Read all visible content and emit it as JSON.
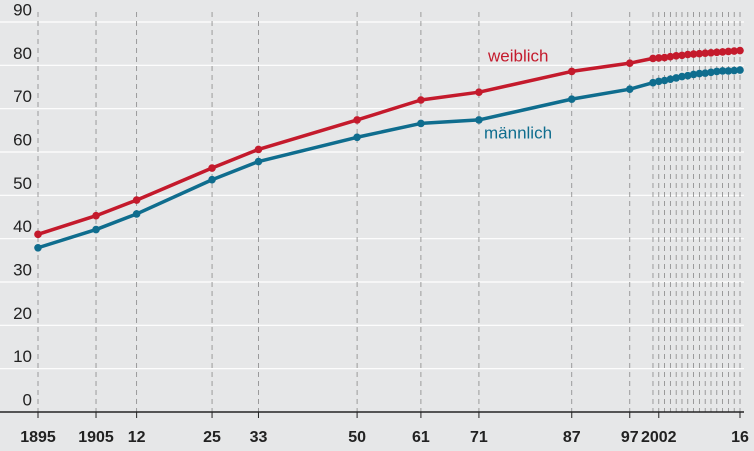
{
  "chart_data": {
    "type": "line",
    "x": [
      1895,
      1905,
      1912,
      1925,
      1933,
      1950,
      1961,
      1971,
      1987,
      1997,
      2001,
      2002,
      2003,
      2004,
      2005,
      2006,
      2007,
      2008,
      2009,
      2010,
      2011,
      2012,
      2013,
      2014,
      2015,
      2016
    ],
    "series": [
      {
        "name": "weiblich",
        "color": "#c41a2c",
        "values": [
          41.0,
          45.3,
          48.9,
          56.3,
          60.6,
          67.4,
          72.0,
          73.8,
          78.6,
          80.5,
          81.6,
          81.7,
          81.8,
          82.0,
          82.2,
          82.3,
          82.5,
          82.6,
          82.7,
          82.8,
          82.9,
          83.0,
          83.1,
          83.2,
          83.3,
          83.4
        ]
      },
      {
        "name": "männlich",
        "color": "#0f6d8e",
        "values": [
          37.9,
          42.1,
          45.7,
          53.6,
          57.8,
          63.4,
          66.6,
          67.4,
          72.2,
          74.5,
          76.0,
          76.3,
          76.5,
          76.8,
          77.1,
          77.4,
          77.6,
          77.9,
          78.1,
          78.2,
          78.4,
          78.6,
          78.7,
          78.7,
          78.8,
          78.9
        ]
      }
    ],
    "xlim": [
      1895,
      2016
    ],
    "xticks": [
      1895,
      1905,
      {
        "value": 1912,
        "label": "12"
      },
      {
        "value": 1925,
        "label": "25"
      },
      {
        "value": 1933,
        "label": "33"
      },
      {
        "value": 1950,
        "label": "50"
      },
      {
        "value": 1961,
        "label": "61"
      },
      {
        "value": 1971,
        "label": "71"
      },
      {
        "value": 1987,
        "label": "87"
      },
      {
        "value": 1997,
        "label": "97"
      },
      2002,
      {
        "value": 2016,
        "label": "16"
      }
    ],
    "ylim": [
      0,
      90
    ],
    "yticks": [
      0,
      10,
      20,
      30,
      40,
      50,
      60,
      70,
      80,
      90
    ],
    "grid": true
  }
}
